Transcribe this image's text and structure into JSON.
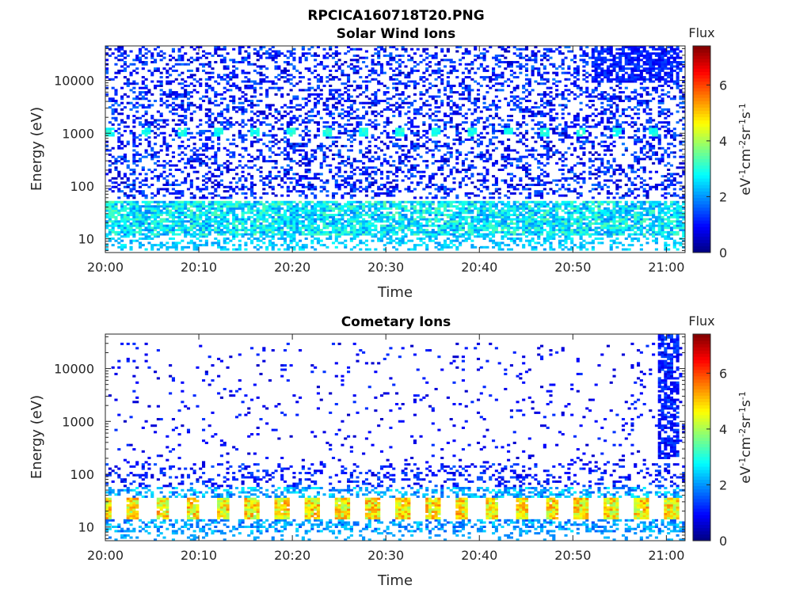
{
  "figure": {
    "title": "RPCICA160718T20.PNG"
  },
  "chart_data": [
    {
      "type": "heatmap",
      "title": "Solar Wind Ions",
      "xlabel": "Time",
      "ylabel": "Energy (eV)",
      "x_ticks": [
        "20:00",
        "20:10",
        "20:20",
        "20:30",
        "20:40",
        "20:50",
        "21:00"
      ],
      "x_range_minutes": [
        0,
        62
      ],
      "y_ticks": [
        "10",
        "100",
        "1000",
        "10000"
      ],
      "y_scale": "log",
      "ylim": [
        5.5,
        45000
      ],
      "colorbar": {
        "label_top": "Flux",
        "label_parts": [
          "eV",
          "-1",
          "cm",
          "-2",
          "sr",
          "-1",
          "s",
          "-1"
        ],
        "ticks": [
          "0",
          "2",
          "4",
          "6"
        ],
        "range": [
          0,
          7.4
        ],
        "colormap": "jet"
      },
      "description": "Sparse blue counts (flux ~0.5-1.5) across 100 eV - 40 keV; recurrent cyan bands (~3) near 1000-1200 eV; cyan/green bands (2-3.5) at 10-50 eV; dense dark-blue block at 20:52-21:02 above 10 keV."
    },
    {
      "type": "heatmap",
      "title": "Cometary Ions",
      "xlabel": "Time",
      "ylabel": "Energy (eV)",
      "x_ticks": [
        "20:00",
        "20:10",
        "20:20",
        "20:30",
        "20:40",
        "20:50",
        "21:00"
      ],
      "x_range_minutes": [
        0,
        62
      ],
      "y_ticks": [
        "10",
        "100",
        "1000",
        "10000"
      ],
      "y_scale": "log",
      "ylim": [
        5.5,
        45000
      ],
      "colorbar": {
        "label_top": "Flux",
        "label_parts": [
          "eV",
          "-1",
          "cm",
          "-2",
          "sr",
          "-1",
          "s",
          "-1"
        ],
        "ticks": [
          "0",
          "2",
          "4",
          "6"
        ],
        "range": [
          0,
          7.4
        ],
        "colormap": "jet"
      },
      "description": "Very sparse blue counts above 200 eV; blue band near 60-150 eV; periodic yellow/orange bursts (flux 4-5.5) at 15-35 eV about every 3.2 minutes; dense blue column from 20:59 to 21:02 spanning 200 eV - 40 keV."
    }
  ]
}
